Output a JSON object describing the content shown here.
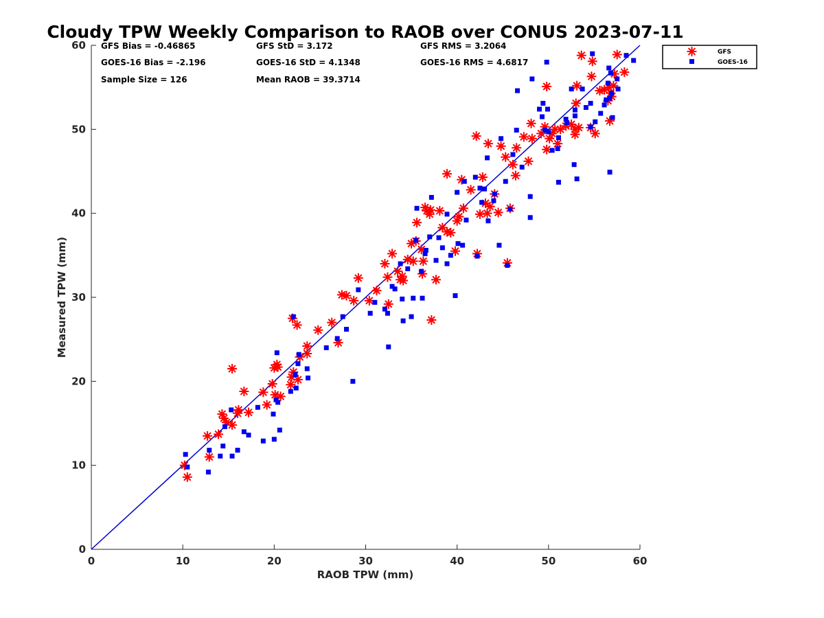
{
  "chart_data": {
    "type": "scatter",
    "title": "Cloudy TPW Weekly Comparison to RAOB over CONUS 2023-07-11",
    "xlabel": "RAOB TPW (mm)",
    "ylabel": "Measured TPW (mm)",
    "xlim": [
      0,
      60
    ],
    "ylim": [
      0,
      60
    ],
    "xticks": [
      "0",
      "10",
      "20",
      "30",
      "40",
      "50",
      "60"
    ],
    "yticks": [
      "0",
      "10",
      "20",
      "30",
      "40",
      "50",
      "60"
    ],
    "grid": false,
    "legend_position": "top-right outside",
    "reference_line": {
      "type": "one-to-one",
      "color": "#0000cc"
    },
    "stats": {
      "gfs_bias": "GFS Bias = -0.46865",
      "goes_bias": "GOES-16 Bias = -2.196",
      "sample_size": "Sample Size = 126",
      "gfs_std": "GFS StD = 3.172",
      "goes_std": "GOES-16 StD = 4.1348",
      "mean_raob": "Mean RAOB = 39.3714",
      "gfs_rms": "GFS RMS = 3.2064",
      "goes_rms": "GOES-16 RMS = 4.6817"
    },
    "series": [
      {
        "name": "GFS",
        "marker": "asterisk",
        "color": "#ff0000",
        "points": [
          [
            10.2,
            10.0
          ],
          [
            10.5,
            8.6
          ],
          [
            12.7,
            13.5
          ],
          [
            12.9,
            11.0
          ],
          [
            13.9,
            13.7
          ],
          [
            14.3,
            16.1
          ],
          [
            14.5,
            15.6
          ],
          [
            14.8,
            15.1
          ],
          [
            15.4,
            21.5
          ],
          [
            15.4,
            14.8
          ],
          [
            16.0,
            16.2
          ],
          [
            16.1,
            16.6
          ],
          [
            16.7,
            18.8
          ],
          [
            17.2,
            16.3
          ],
          [
            18.8,
            18.7
          ],
          [
            19.8,
            19.7
          ],
          [
            20.0,
            21.6
          ],
          [
            20.1,
            18.4
          ],
          [
            20.3,
            22.0
          ],
          [
            20.4,
            21.7
          ],
          [
            20.7,
            18.2
          ],
          [
            21.8,
            19.6
          ],
          [
            22.0,
            27.5
          ],
          [
            22.1,
            21.1
          ],
          [
            22.5,
            26.7
          ],
          [
            22.6,
            20.2
          ],
          [
            22.8,
            22.9
          ],
          [
            23.6,
            24.2
          ],
          [
            23.6,
            23.3
          ],
          [
            27.0,
            24.6
          ],
          [
            27.4,
            30.3
          ],
          [
            27.9,
            30.2
          ],
          [
            28.7,
            29.6
          ],
          [
            29.2,
            32.3
          ],
          [
            30.4,
            29.6
          ],
          [
            32.1,
            34.0
          ],
          [
            32.4,
            32.4
          ],
          [
            32.5,
            29.2
          ],
          [
            32.9,
            35.2
          ],
          [
            33.8,
            32.1
          ],
          [
            34.0,
            32.5
          ],
          [
            34.1,
            32.0
          ],
          [
            34.6,
            34.5
          ],
          [
            35.0,
            36.4
          ],
          [
            35.2,
            34.3
          ],
          [
            35.5,
            36.7
          ],
          [
            35.6,
            38.9
          ],
          [
            36.1,
            35.7
          ],
          [
            36.2,
            32.8
          ],
          [
            36.3,
            34.3
          ],
          [
            36.5,
            40.7
          ],
          [
            36.7,
            40.3
          ],
          [
            37.0,
            39.9
          ],
          [
            37.1,
            40.4
          ],
          [
            37.2,
            27.3
          ],
          [
            37.7,
            32.1
          ],
          [
            38.4,
            38.3
          ],
          [
            38.9,
            37.8
          ],
          [
            38.9,
            44.7
          ],
          [
            39.3,
            37.7
          ],
          [
            39.8,
            35.5
          ],
          [
            40.0,
            39.1
          ],
          [
            40.2,
            39.6
          ],
          [
            40.5,
            44.0
          ],
          [
            40.7,
            40.6
          ],
          [
            42.1,
            49.2
          ],
          [
            42.2,
            35.2
          ],
          [
            42.5,
            39.9
          ],
          [
            42.8,
            44.3
          ],
          [
            43.1,
            41.2
          ],
          [
            43.3,
            40.0
          ],
          [
            43.4,
            48.3
          ],
          [
            43.6,
            40.8
          ],
          [
            44.1,
            42.3
          ],
          [
            44.5,
            40.1
          ],
          [
            44.8,
            48.0
          ],
          [
            45.3,
            46.7
          ],
          [
            45.5,
            34.1
          ],
          [
            45.8,
            40.6
          ],
          [
            46.1,
            45.8
          ],
          [
            46.4,
            44.5
          ],
          [
            46.5,
            47.8
          ],
          [
            47.8,
            46.2
          ],
          [
            48.1,
            50.7
          ],
          [
            48.2,
            48.9
          ],
          [
            49.2,
            49.5
          ],
          [
            49.6,
            50.3
          ],
          [
            49.8,
            47.6
          ],
          [
            49.8,
            55.1
          ],
          [
            50.1,
            48.9
          ],
          [
            50.4,
            49.5
          ],
          [
            51.0,
            48.3
          ],
          [
            51.3,
            50.0
          ],
          [
            51.9,
            50.4
          ],
          [
            52.5,
            50.6
          ],
          [
            52.9,
            49.4
          ],
          [
            52.9,
            50.0
          ],
          [
            53.0,
            53.1
          ],
          [
            53.1,
            55.2
          ],
          [
            53.3,
            50.2
          ],
          [
            53.6,
            58.8
          ],
          [
            54.6,
            50.2
          ],
          [
            54.7,
            56.3
          ],
          [
            54.8,
            58.1
          ],
          [
            55.1,
            49.5
          ],
          [
            55.6,
            54.6
          ],
          [
            56.1,
            54.7
          ],
          [
            56.5,
            53.4
          ],
          [
            56.6,
            55.0
          ],
          [
            56.7,
            51.0
          ],
          [
            56.8,
            54.3
          ],
          [
            56.9,
            53.9
          ],
          [
            57.2,
            56.6
          ],
          [
            57.5,
            58.9
          ],
          [
            58.3,
            56.8
          ],
          [
            57.1,
            55.2
          ],
          [
            21.9,
            20.5
          ],
          [
            33.5,
            33.1
          ],
          [
            41.5,
            42.8
          ],
          [
            47.3,
            49.1
          ],
          [
            50.7,
            50.0
          ],
          [
            38.1,
            40.3
          ],
          [
            24.8,
            26.1
          ],
          [
            19.2,
            17.2
          ],
          [
            26.3,
            27.0
          ],
          [
            31.2,
            30.8
          ]
        ]
      },
      {
        "name": "GOES-16",
        "marker": "square",
        "color": "#0000ee",
        "points": [
          [
            10.3,
            11.3
          ],
          [
            10.5,
            9.8
          ],
          [
            12.8,
            9.2
          ],
          [
            12.9,
            11.8
          ],
          [
            14.1,
            11.1
          ],
          [
            14.4,
            12.3
          ],
          [
            14.6,
            14.6
          ],
          [
            15.3,
            16.6
          ],
          [
            15.4,
            11.1
          ],
          [
            16.0,
            11.8
          ],
          [
            16.7,
            14.0
          ],
          [
            17.2,
            13.6
          ],
          [
            18.8,
            12.9
          ],
          [
            19.9,
            16.1
          ],
          [
            20.0,
            13.1
          ],
          [
            20.2,
            17.8
          ],
          [
            20.3,
            23.4
          ],
          [
            20.4,
            17.5
          ],
          [
            20.6,
            14.2
          ],
          [
            21.8,
            18.8
          ],
          [
            22.1,
            27.7
          ],
          [
            22.3,
            20.8
          ],
          [
            22.4,
            19.2
          ],
          [
            22.6,
            22.1
          ],
          [
            22.7,
            23.2
          ],
          [
            23.6,
            21.5
          ],
          [
            23.7,
            20.4
          ],
          [
            26.9,
            25.1
          ],
          [
            27.5,
            27.7
          ],
          [
            27.9,
            26.2
          ],
          [
            28.6,
            20.0
          ],
          [
            29.2,
            30.9
          ],
          [
            30.5,
            28.1
          ],
          [
            32.1,
            28.6
          ],
          [
            32.4,
            28.1
          ],
          [
            32.5,
            24.1
          ],
          [
            32.9,
            31.3
          ],
          [
            33.8,
            34.0
          ],
          [
            34.0,
            29.8
          ],
          [
            34.1,
            27.2
          ],
          [
            34.6,
            33.4
          ],
          [
            35.0,
            27.7
          ],
          [
            35.2,
            29.9
          ],
          [
            35.5,
            36.8
          ],
          [
            35.6,
            40.6
          ],
          [
            36.1,
            33.1
          ],
          [
            36.2,
            29.9
          ],
          [
            36.5,
            35.2
          ],
          [
            36.6,
            35.6
          ],
          [
            37.0,
            37.2
          ],
          [
            37.2,
            41.9
          ],
          [
            37.7,
            34.4
          ],
          [
            38.4,
            35.9
          ],
          [
            38.9,
            39.9
          ],
          [
            38.9,
            34.0
          ],
          [
            39.3,
            35.0
          ],
          [
            39.8,
            30.2
          ],
          [
            40.0,
            42.5
          ],
          [
            40.1,
            36.4
          ],
          [
            40.6,
            36.2
          ],
          [
            40.8,
            43.8
          ],
          [
            42.0,
            44.3
          ],
          [
            42.2,
            34.9
          ],
          [
            42.5,
            43.0
          ],
          [
            42.7,
            41.3
          ],
          [
            43.0,
            42.9
          ],
          [
            43.3,
            46.6
          ],
          [
            43.4,
            39.1
          ],
          [
            44.1,
            42.3
          ],
          [
            44.6,
            36.2
          ],
          [
            44.8,
            48.9
          ],
          [
            45.3,
            43.8
          ],
          [
            45.5,
            33.8
          ],
          [
            45.8,
            40.5
          ],
          [
            46.1,
            47.0
          ],
          [
            46.5,
            49.9
          ],
          [
            46.6,
            54.6
          ],
          [
            48.0,
            42.0
          ],
          [
            48.0,
            39.5
          ],
          [
            48.2,
            56.0
          ],
          [
            49.0,
            52.4
          ],
          [
            49.3,
            51.5
          ],
          [
            49.4,
            53.1
          ],
          [
            49.6,
            49.9
          ],
          [
            49.8,
            58.0
          ],
          [
            49.9,
            52.4
          ],
          [
            50.0,
            49.7
          ],
          [
            51.0,
            47.7
          ],
          [
            51.1,
            43.7
          ],
          [
            51.1,
            49.0
          ],
          [
            51.9,
            51.2
          ],
          [
            52.5,
            54.8
          ],
          [
            52.8,
            45.8
          ],
          [
            52.9,
            51.6
          ],
          [
            52.9,
            52.3
          ],
          [
            53.1,
            44.1
          ],
          [
            53.7,
            54.8
          ],
          [
            54.6,
            50.3
          ],
          [
            54.6,
            53.1
          ],
          [
            54.8,
            59.0
          ],
          [
            55.1,
            50.9
          ],
          [
            55.7,
            51.9
          ],
          [
            56.1,
            52.9
          ],
          [
            56.5,
            55.5
          ],
          [
            56.6,
            57.3
          ],
          [
            56.7,
            53.7
          ],
          [
            56.7,
            44.9
          ],
          [
            56.9,
            54.3
          ],
          [
            57.0,
            51.4
          ],
          [
            57.5,
            56.0
          ],
          [
            57.6,
            54.8
          ],
          [
            58.5,
            58.8
          ],
          [
            59.3,
            58.2
          ],
          [
            56.3,
            53.5
          ],
          [
            56.8,
            56.7
          ],
          [
            41.0,
            39.2
          ],
          [
            31.0,
            29.4
          ],
          [
            18.2,
            16.9
          ],
          [
            25.7,
            24.0
          ],
          [
            47.1,
            45.5
          ],
          [
            44.0,
            41.5
          ],
          [
            33.2,
            31.0
          ],
          [
            52.0,
            50.8
          ],
          [
            38.0,
            37.1
          ],
          [
            50.4,
            47.5
          ],
          [
            54.1,
            52.6
          ]
        ]
      }
    ]
  }
}
